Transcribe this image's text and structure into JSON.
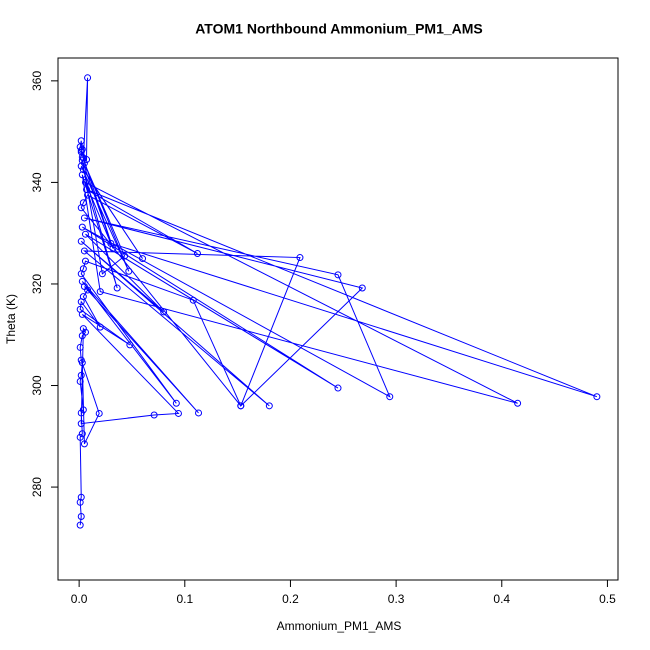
{
  "chart_data": {
    "type": "line",
    "title": "ATOM1 Northbound Ammonium_PM1_AMS",
    "x_label": "Ammonium_PM1_AMS",
    "y_label": "Theta (K)",
    "color": "#0000ff",
    "markers": true,
    "xlim": [
      -0.02,
      0.51
    ],
    "ylim": [
      261.7,
      364.5
    ],
    "xticks": [
      {
        "value": 0,
        "label": "0.0"
      },
      0.1,
      0.2,
      0.3,
      0.4,
      0.5
    ],
    "yticks": [
      280,
      300,
      320,
      340,
      360
    ],
    "x": [
      0.001,
      0.002,
      0.001,
      0.002,
      0.001,
      0.003,
      0.002,
      0.004,
      0.001,
      0.002,
      0.003,
      0.005,
      0.019,
      0.002,
      0.001,
      0.003,
      0.006,
      0.004,
      0.002,
      0.071,
      0.094,
      0.003,
      0.048,
      0.001,
      0.002,
      0.02,
      0.004,
      0.008,
      0.005,
      0.113,
      0.003,
      0.092,
      0.002,
      0.004,
      0.006,
      0.108,
      0.153,
      0.209,
      0.005,
      0.18,
      0.002,
      0.08,
      0.006,
      0.245,
      0.003,
      0.294,
      0.245,
      0.005,
      0.268,
      0.153,
      0.002,
      0.004,
      0.008,
      0.112,
      0.007,
      0.49,
      0.03,
      0.006,
      0.415,
      0.02,
      0.003,
      0.036,
      0.004,
      0.06,
      0.002,
      0.047,
      0.005,
      0.043,
      0.022,
      0.003,
      0.032,
      0.004,
      0.008,
      0.007,
      0.002,
      0.003,
      0.001,
      0.002,
      0.003,
      0.002
    ],
    "values": [
      272.5,
      274.2,
      277,
      278,
      289.8,
      290.5,
      294.6,
      295.2,
      300.8,
      302,
      304.5,
      288.5,
      294.5,
      305,
      307.5,
      309.8,
      310.5,
      311.2,
      292.5,
      294.2,
      294.5,
      314,
      308,
      315,
      316.5,
      311.5,
      317.5,
      318.8,
      319.5,
      294.6,
      320.5,
      296.5,
      322,
      323,
      324.5,
      316.8,
      296,
      325.2,
      326.5,
      296,
      328.4,
      314.5,
      329.8,
      299.5,
      331.2,
      297.8,
      321.8,
      333,
      319.2,
      296,
      335,
      336,
      337.5,
      326,
      338.6,
      297.8,
      328,
      340,
      296.5,
      318.5,
      341.5,
      319.2,
      342.5,
      325,
      343.2,
      322.5,
      343.8,
      325.5,
      322,
      344.3,
      327,
      344.8,
      360.6,
      344.5,
      346,
      346.5,
      347,
      348.2,
      345,
      346.3
    ]
  }
}
